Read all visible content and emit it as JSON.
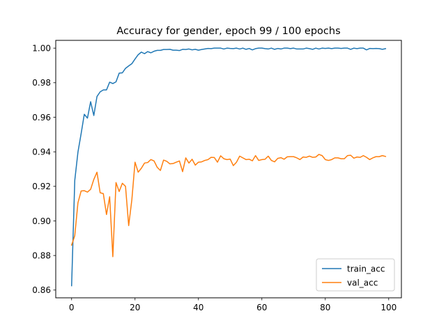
{
  "chart_data": {
    "type": "line",
    "title": "Accuracy for gender, epoch 99 / 100 epochs",
    "xlabel": "",
    "ylabel": "",
    "xlim": [
      -5,
      104
    ],
    "ylim": [
      0.8555,
      1.0045
    ],
    "x_ticks": [
      0,
      20,
      40,
      60,
      80,
      100
    ],
    "y_ticks": [
      0.86,
      0.88,
      0.9,
      0.92,
      0.94,
      0.96,
      0.98,
      1.0
    ],
    "y_tick_labels": [
      "0.86",
      "0.88",
      "0.90",
      "0.92",
      "0.94",
      "0.96",
      "0.98",
      "1.00"
    ],
    "grid": false,
    "legend_position": "lower right",
    "series": [
      {
        "name": "train_acc",
        "color": "#1f77b4",
        "values": [
          0.8625,
          0.9235,
          0.9398,
          0.9505,
          0.9617,
          0.9595,
          0.969,
          0.961,
          0.972,
          0.9747,
          0.9758,
          0.9758,
          0.9803,
          0.9795,
          0.9805,
          0.9855,
          0.9857,
          0.9883,
          0.9897,
          0.991,
          0.9937,
          0.9962,
          0.9977,
          0.9968,
          0.998,
          0.9973,
          0.9982,
          0.9987,
          0.9987,
          0.9992,
          0.9992,
          0.9993,
          0.9988,
          0.9988,
          0.9986,
          0.9993,
          0.9992,
          0.9995,
          0.999,
          0.9993,
          0.9988,
          0.9992,
          0.9995,
          0.9998,
          0.9997,
          1.0,
          1.0,
          1.0,
          0.9995,
          1.0,
          0.9998,
          0.9997,
          1.0,
          0.9995,
          1.0,
          0.9993,
          0.9998,
          0.999,
          0.9997,
          1.0,
          1.0,
          0.9997,
          0.9995,
          1.0,
          0.9993,
          0.9998,
          0.9995,
          1.0,
          1.0,
          0.9997,
          1.0,
          0.9995,
          0.9995,
          0.9995,
          1.0,
          0.9997,
          0.9993,
          1.0,
          0.9995,
          1.0,
          0.9998,
          1.0,
          0.9997,
          1.0,
          1.0,
          0.9998,
          1.0,
          1.0,
          0.9993,
          1.0,
          0.9997,
          1.0,
          1.0,
          0.999,
          0.9998,
          0.9997,
          0.9998,
          0.9997,
          0.9993,
          0.9997
        ]
      },
      {
        "name": "val_acc",
        "color": "#ff7f0e",
        "values": [
          0.886,
          0.8915,
          0.9105,
          0.9173,
          0.9175,
          0.9167,
          0.9183,
          0.924,
          0.9282,
          0.9163,
          0.9158,
          0.9037,
          0.914,
          0.8793,
          0.9222,
          0.917,
          0.9218,
          0.92,
          0.8973,
          0.9123,
          0.934,
          0.9282,
          0.9305,
          0.9335,
          0.9338,
          0.9355,
          0.9347,
          0.931,
          0.9292,
          0.9352,
          0.9345,
          0.933,
          0.9332,
          0.934,
          0.9347,
          0.9285,
          0.9365,
          0.9335,
          0.9357,
          0.9323,
          0.934,
          0.9342,
          0.935,
          0.9355,
          0.9368,
          0.9367,
          0.934,
          0.9377,
          0.936,
          0.9355,
          0.9358,
          0.932,
          0.934,
          0.9375,
          0.9365,
          0.9355,
          0.9357,
          0.9348,
          0.9378,
          0.935,
          0.9355,
          0.9357,
          0.9375,
          0.935,
          0.9342,
          0.9362,
          0.9366,
          0.9357,
          0.9371,
          0.9372,
          0.9372,
          0.9365,
          0.9355,
          0.937,
          0.9368,
          0.9375,
          0.9368,
          0.937,
          0.9385,
          0.9378,
          0.9355,
          0.935,
          0.9355,
          0.9365,
          0.9365,
          0.936,
          0.936,
          0.9378,
          0.938,
          0.9363,
          0.937,
          0.9368,
          0.9378,
          0.9368,
          0.9355,
          0.9365,
          0.9372,
          0.9372,
          0.9378,
          0.9373
        ]
      }
    ]
  }
}
